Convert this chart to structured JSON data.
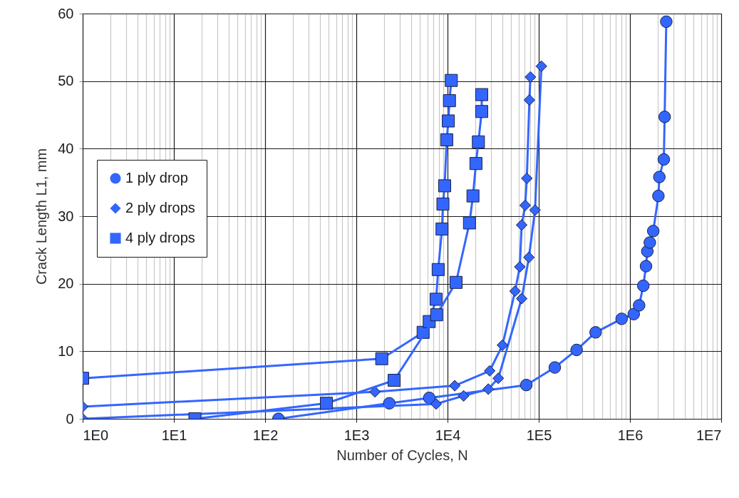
{
  "chart_data": {
    "type": "line",
    "xlabel": "Number of Cycles, N",
    "ylabel": "Crack Length L1, mm",
    "log": "x",
    "xlim": [
      1,
      10000000
    ],
    "ylim": [
      0,
      60
    ],
    "xticks": [
      {
        "value": 1,
        "label": "1E0"
      },
      {
        "value": 10,
        "label": "1E1"
      },
      {
        "value": 100,
        "label": "1E2"
      },
      {
        "value": 1000,
        "label": "1E3"
      },
      {
        "value": 10000,
        "label": "1E4"
      },
      {
        "value": 100000,
        "label": "1E5"
      },
      {
        "value": 1000000,
        "label": "1E6"
      },
      {
        "value": 10000000,
        "label": "1E7"
      }
    ],
    "yticks": [
      0,
      10,
      20,
      30,
      40,
      50,
      60
    ],
    "grid": true,
    "legend": "left",
    "line_style": "solid",
    "series": [
      {
        "name": "1 ply drop",
        "color": "#3366ff",
        "marker": "circle",
        "x": [
          140,
          2300,
          6300,
          73000,
          150000,
          260000,
          420000,
          810000,
          1100000,
          1260000,
          1400000,
          1500000,
          1550000,
          1650000,
          1800000,
          2050000,
          2100000,
          2350000,
          2400000,
          2500000
        ],
        "values": [
          0,
          2.3,
          3.1,
          5.0,
          7.6,
          10.2,
          12.8,
          14.8,
          15.5,
          16.8,
          19.7,
          22.6,
          24.8,
          26.1,
          27.8,
          33.0,
          35.8,
          38.4,
          44.7,
          58.8
        ]
      },
      {
        "name": "2 ply drops",
        "color": "#3366ff",
        "marker": "diamond",
        "x": [
          1,
          7500,
          15000,
          28000,
          36000,
          65000,
          78000,
          91000,
          107000
        ],
        "values": [
          0,
          2.2,
          3.4,
          4.4,
          6.0,
          17.8,
          23.9,
          30.9,
          52.2
        ]
      },
      {
        "color": "#3366ff",
        "marker": "diamond",
        "x": [
          1,
          1600,
          12000,
          29000,
          40000,
          55000,
          62000,
          65000,
          71000,
          74000,
          79000,
          81000
        ],
        "values": [
          1.8,
          4.0,
          4.9,
          7.1,
          10.9,
          18.9,
          22.5,
          28.7,
          31.6,
          35.6,
          47.2,
          50.6
        ]
      },
      {
        "name": "4 ply drops",
        "color": "#3366ff",
        "marker": "square",
        "x": [
          1,
          1900,
          5400,
          6300,
          7500,
          7900,
          8700,
          8900,
          9300,
          9800,
          10200,
          10500,
          11000
        ],
        "values": [
          6.0,
          8.9,
          12.8,
          14.4,
          17.7,
          22.1,
          28.1,
          31.8,
          34.5,
          41.3,
          44.1,
          47.1,
          50.1
        ]
      },
      {
        "color": "#3366ff",
        "marker": "square",
        "x": [
          17,
          470,
          2600,
          7600,
          12400,
          17400,
          19000,
          20500,
          21800,
          23700,
          23700
        ],
        "values": [
          0,
          2.3,
          5.7,
          15.4,
          20.2,
          29.0,
          33.0,
          37.8,
          41.0,
          45.5,
          48.0
        ]
      }
    ]
  }
}
